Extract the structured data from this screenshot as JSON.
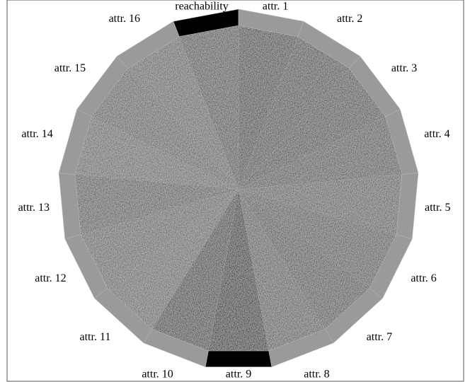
{
  "segments": [
    {
      "label": "reachability"
    },
    {
      "label": "attr. 1"
    },
    {
      "label": "attr. 2"
    },
    {
      "label": "attr. 3"
    },
    {
      "label": "attr. 4"
    },
    {
      "label": "attr. 5"
    },
    {
      "label": "attr. 6"
    },
    {
      "label": "attr. 7"
    },
    {
      "label": "attr. 8"
    },
    {
      "label": "attr. 9"
    },
    {
      "label": "attr. 10"
    },
    {
      "label": "attr. 11"
    },
    {
      "label": "attr. 12"
    },
    {
      "label": "attr. 13"
    },
    {
      "label": "attr. 14"
    },
    {
      "label": "attr. 15"
    },
    {
      "label": "attr. 16"
    }
  ]
}
